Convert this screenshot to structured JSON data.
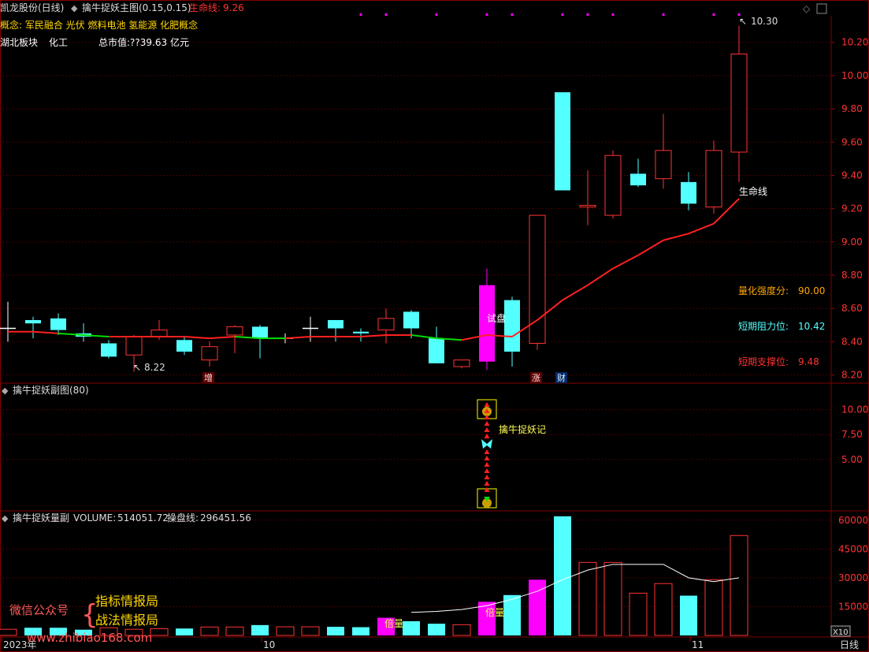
{
  "header": {
    "stock_name": "凯龙股份(日线)",
    "indicator_name": "擒牛捉妖主图(0.15,0.15)",
    "lifeline_label": "生命线:",
    "lifeline_value": "9.26",
    "concept_line": "概念: 军民融合 光伏 燃料电池 氢能源 化肥概念",
    "sector": "湖北板块",
    "industry": "化工",
    "market_cap": "总市值:??39.63 亿元"
  },
  "stats": {
    "strength_label": "量化强度分:",
    "strength_value": "90.00",
    "resist_label": "短期阻力位:",
    "resist_value": "10.42",
    "support_label": "短期支撑位:",
    "support_value": "9.48"
  },
  "annotations": {
    "high": "10.30",
    "low": "8.22",
    "lifeline_tag": "生命线",
    "trial": "试盘",
    "zeng": "增",
    "zhang": "涨",
    "cai": "财",
    "sub_label": "擒牛捉妖记",
    "beiliang": "倍量",
    "day_label": "日线",
    "x10": "X10"
  },
  "panel2": {
    "title": "擒牛捉妖副图(80)"
  },
  "panel3": {
    "title": "擒牛捉妖量副",
    "volume_label": "VOLUME:",
    "volume_value": "514051.72",
    "ops_label": "操盘线:",
    "ops_value": "296451.56"
  },
  "watermark": {
    "wechat": "微信公众号",
    "line1": "指标情报局",
    "line2": "战法情报局",
    "site": "www.zhibiao168.com"
  },
  "colors": {
    "up": "#ff3333",
    "down": "#54ffff",
    "magenta": "#ff00ff",
    "lifeline": "#ff2020",
    "green": "#00dd00",
    "grid": "#7a0000"
  },
  "chart_data": [
    {
      "type": "candlestick",
      "x_axis_labels": [
        "2023年",
        "10",
        "11"
      ],
      "ylim": [
        8.16,
        10.36
      ],
      "yticks": [
        "10.20",
        "10.00",
        "9.80",
        "9.60",
        "9.40",
        "9.20",
        "9.00",
        "8.80",
        "8.60",
        "8.40",
        "8.20"
      ],
      "candles": [
        {
          "o": 8.48,
          "c": 8.48,
          "h": 8.64,
          "l": 8.4,
          "kind": "doji"
        },
        {
          "o": 8.53,
          "c": 8.51,
          "h": 8.55,
          "l": 8.42,
          "kind": "down"
        },
        {
          "o": 8.54,
          "c": 8.47,
          "h": 8.57,
          "l": 8.44,
          "kind": "down"
        },
        {
          "o": 8.45,
          "c": 8.43,
          "h": 8.51,
          "l": 8.4,
          "kind": "down"
        },
        {
          "o": 8.39,
          "c": 8.31,
          "h": 8.41,
          "l": 8.3,
          "kind": "down"
        },
        {
          "o": 8.32,
          "c": 8.43,
          "h": 8.44,
          "l": 8.22,
          "kind": "up"
        },
        {
          "o": 8.43,
          "c": 8.47,
          "h": 8.53,
          "l": 8.41,
          "kind": "up"
        },
        {
          "o": 8.41,
          "c": 8.34,
          "h": 8.43,
          "l": 8.32,
          "kind": "down"
        },
        {
          "o": 8.29,
          "c": 8.37,
          "h": 8.4,
          "l": 8.25,
          "kind": "up"
        },
        {
          "o": 8.44,
          "c": 8.49,
          "h": 8.5,
          "l": 8.33,
          "kind": "up"
        },
        {
          "o": 8.49,
          "c": 8.42,
          "h": 8.5,
          "l": 8.3,
          "kind": "down"
        },
        {
          "o": 8.42,
          "c": 8.42,
          "h": 8.45,
          "l": 8.39,
          "kind": "doji"
        },
        {
          "o": 8.48,
          "c": 8.48,
          "h": 8.55,
          "l": 8.4,
          "kind": "doji"
        },
        {
          "o": 8.53,
          "c": 8.48,
          "h": 8.53,
          "l": 8.4,
          "kind": "down"
        },
        {
          "o": 8.46,
          "c": 8.45,
          "h": 8.48,
          "l": 8.4,
          "kind": "down"
        },
        {
          "o": 8.47,
          "c": 8.54,
          "h": 8.6,
          "l": 8.39,
          "kind": "up"
        },
        {
          "o": 8.58,
          "c": 8.48,
          "h": 8.59,
          "l": 8.42,
          "kind": "down"
        },
        {
          "o": 8.42,
          "c": 8.27,
          "h": 8.49,
          "l": 8.27,
          "kind": "down"
        },
        {
          "o": 8.25,
          "c": 8.29,
          "h": 8.29,
          "l": 8.24,
          "kind": "up"
        },
        {
          "o": 8.74,
          "c": 8.28,
          "h": 8.84,
          "l": 8.23,
          "kind": "magenta"
        },
        {
          "o": 8.65,
          "c": 8.34,
          "h": 8.67,
          "l": 8.25,
          "kind": "down"
        },
        {
          "o": 8.39,
          "c": 9.16,
          "h": 9.16,
          "l": 8.35,
          "kind": "up"
        },
        {
          "o": 9.9,
          "c": 9.31,
          "h": 9.9,
          "l": 9.31,
          "kind": "down"
        },
        {
          "o": 9.21,
          "c": 9.22,
          "h": 9.43,
          "l": 9.1,
          "kind": "up"
        },
        {
          "o": 9.16,
          "c": 9.52,
          "h": 9.55,
          "l": 9.14,
          "kind": "up"
        },
        {
          "o": 9.41,
          "c": 9.34,
          "h": 9.5,
          "l": 9.33,
          "kind": "down"
        },
        {
          "o": 9.38,
          "c": 9.55,
          "h": 9.77,
          "l": 9.32,
          "kind": "up"
        },
        {
          "o": 9.36,
          "c": 9.23,
          "h": 9.42,
          "l": 9.19,
          "kind": "down"
        },
        {
          "o": 9.21,
          "c": 9.55,
          "h": 9.61,
          "l": 9.17,
          "kind": "up"
        },
        {
          "o": 9.54,
          "c": 10.13,
          "h": 10.3,
          "l": 9.36,
          "kind": "up"
        }
      ],
      "lifeline": [
        8.46,
        8.46,
        8.45,
        8.44,
        8.43,
        8.43,
        8.43,
        8.43,
        8.42,
        8.43,
        8.42,
        8.42,
        8.43,
        8.43,
        8.43,
        8.44,
        8.44,
        8.42,
        8.41,
        8.44,
        8.43,
        8.53,
        8.65,
        8.74,
        8.84,
        8.92,
        9.01,
        9.05,
        9.11,
        9.26
      ],
      "lifeline_green_segments": [
        [
          2,
          4
        ],
        [
          9,
          11
        ],
        [
          16,
          18
        ]
      ]
    },
    {
      "type": "indicator",
      "ylim": [
        0,
        12.5
      ],
      "yticks": [
        "10.00",
        "7.50",
        "5.00"
      ],
      "signal_index": 19
    },
    {
      "type": "bar",
      "ylim": [
        0,
        64000
      ],
      "yticks": [
        "60000",
        "45000",
        "30000",
        "15000"
      ],
      "volumes": [
        3200,
        4000,
        4000,
        3000,
        4000,
        3200,
        3500,
        3600,
        4400,
        4400,
        5400,
        4500,
        4500,
        4500,
        4300,
        9200,
        7400,
        6100,
        5600,
        17500,
        21000,
        29000,
        62000,
        38000,
        38000,
        22000,
        27000,
        20700,
        29000,
        52000
      ],
      "kinds": [
        "up",
        "down",
        "down",
        "down",
        "up",
        "up",
        "up",
        "down",
        "up",
        "up",
        "down",
        "up",
        "up",
        "down",
        "down",
        "magenta",
        "down",
        "down",
        "up",
        "magenta",
        "down",
        "magenta",
        "down",
        "up",
        "up",
        "up",
        "up",
        "down",
        "up",
        "up"
      ],
      "ops_line": [
        null,
        null,
        null,
        null,
        null,
        null,
        null,
        null,
        null,
        null,
        null,
        null,
        null,
        null,
        null,
        null,
        12000,
        12500,
        13500,
        15500,
        18800,
        23000,
        29000,
        34000,
        37000,
        37000,
        37000,
        30000,
        28000,
        30000
      ]
    }
  ]
}
